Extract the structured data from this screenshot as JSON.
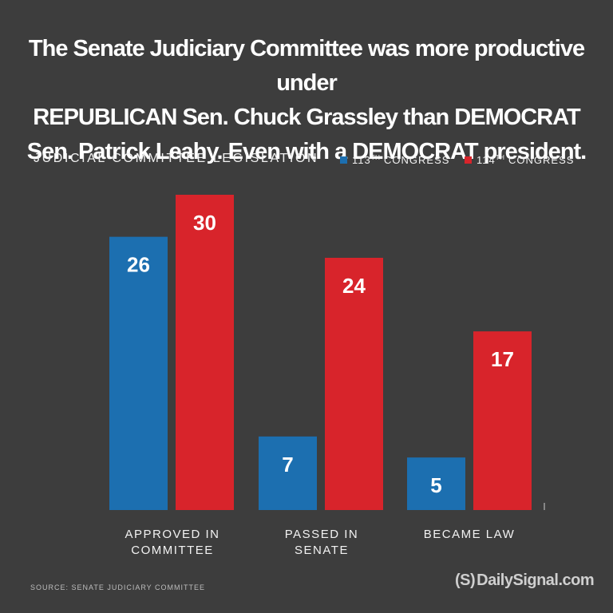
{
  "title_lines": [
    "The Senate Judiciary Committee was more productive under",
    "REPUBLICAN Sen. Chuck Grassley than DEMOCRAT",
    "Sen. Patrick Leahy. Even with a DEMOCRAT president."
  ],
  "source": "SOURCE: SENATE JUDICIARY COMMITTEE",
  "logo": {
    "mark": "(S)",
    "text": "DailySignal.com"
  },
  "colors": {
    "blue": "#1c6fb0",
    "red": "#d8242b",
    "background": "#3d3d3d"
  },
  "chart_data": {
    "type": "bar",
    "title": "JUDICIAL COMMITTEE LEGISLATION",
    "categories": [
      "APPROVED IN COMMITTEE",
      "PASSED IN SENATE",
      "BECAME LAW"
    ],
    "category_lines": [
      [
        "APPROVED IN",
        "COMMITTEE"
      ],
      [
        "PASSED IN",
        "SENATE"
      ],
      [
        "BECAME LAW"
      ]
    ],
    "series": [
      {
        "name": "113TH CONGRESS",
        "name_base": "113",
        "name_sup": "TH",
        "name_rest": " CONGRESS",
        "color": "#1c6fb0",
        "values": [
          26,
          7,
          5
        ]
      },
      {
        "name": "114TH CONGRESS",
        "name_base": "114",
        "name_sup": "TH",
        "name_rest": " CONGRESS",
        "color": "#d8242b",
        "values": [
          30,
          24,
          17
        ]
      }
    ],
    "ylim": [
      0,
      30
    ],
    "grid": false,
    "legend": "top-right",
    "data_labels": true
  }
}
